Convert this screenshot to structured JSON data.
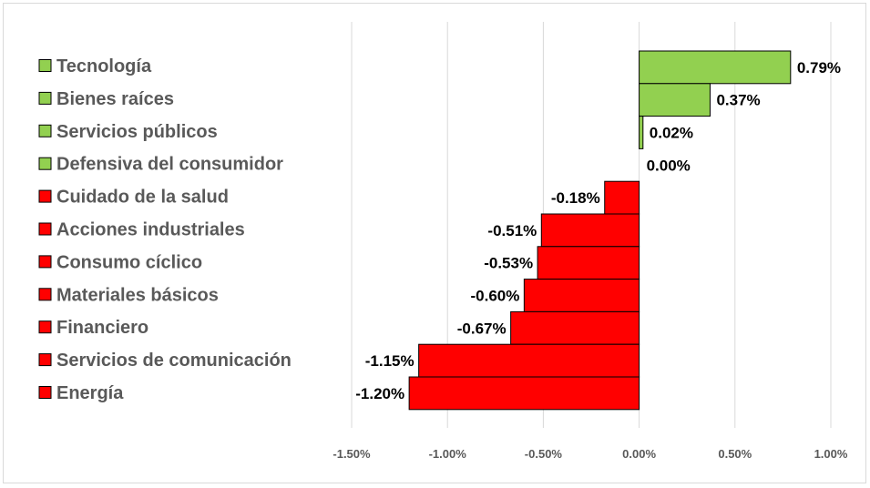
{
  "chart_data": {
    "type": "bar",
    "orientation": "horizontal",
    "title": "",
    "xlabel": "",
    "ylabel": "",
    "xlim": [
      -1.5,
      1.0
    ],
    "grid": true,
    "legend_position": "left",
    "colors": {
      "positive": "#92d050",
      "negative": "#ff0000",
      "grid": "#d9d9d9",
      "border": "#000000"
    },
    "categories": [
      "Tecnología",
      "Bienes raíces",
      "Servicios públicos",
      "Defensiva del consumidor",
      "Cuidado de la salud",
      "Acciones industriales",
      "Consumo cíclico",
      "Materiales básicos",
      "Financiero",
      "Servicios de comunicación",
      "Energía"
    ],
    "values": [
      0.79,
      0.37,
      0.02,
      0.0,
      -0.18,
      -0.51,
      -0.53,
      -0.6,
      -0.67,
      -1.15,
      -1.2
    ],
    "value_labels": [
      "0.79%",
      "0.37%",
      "0.02%",
      "0.00%",
      "-0.18%",
      "-0.51%",
      "-0.53%",
      "-0.60%",
      "-0.67%",
      "-1.15%",
      "-1.20%"
    ],
    "ticks": [
      -1.5,
      -1.0,
      -0.5,
      0.0,
      0.5,
      1.0
    ],
    "tick_labels": [
      "-1.50%",
      "-1.00%",
      "-0.50%",
      "0.00%",
      "0.50%",
      "1.00%"
    ]
  }
}
